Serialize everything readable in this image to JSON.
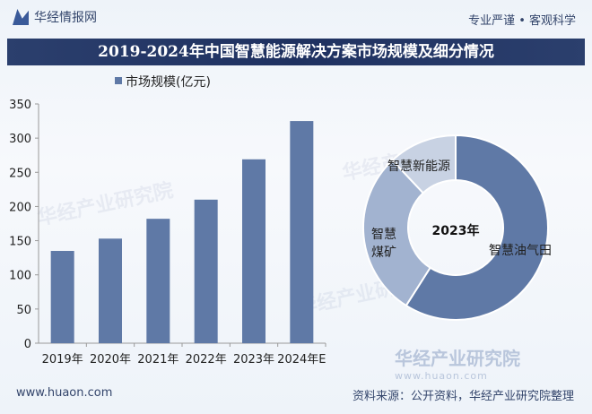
{
  "header": {
    "logo_text": "华经情报网",
    "slogan": "专业严谨 • 客观科学",
    "title": "2019-2024年中国智慧能源解决方案市场规模及细分情况"
  },
  "footer": {
    "website": "www.huaon.com",
    "source": "资料来源：公开资料，华经产业研究院整理"
  },
  "watermark": {
    "text": "华经产业研究院",
    "url": "www.huaon.com"
  },
  "chart_data": [
    {
      "type": "bar",
      "categories": [
        "2019年",
        "2020年",
        "2021年",
        "2022年",
        "2023年",
        "2024年E"
      ],
      "series": [
        {
          "name": "市场规模(亿元)",
          "values": [
            135,
            153,
            182,
            210,
            269,
            325
          ]
        }
      ],
      "ylim": [
        0,
        350
      ],
      "yticks": [
        0,
        50,
        100,
        150,
        200,
        250,
        300,
        350
      ],
      "grid": false,
      "legend": "top-left",
      "color": "#5f79a6"
    },
    {
      "type": "pie",
      "donut": true,
      "center_label": "2023年",
      "slices": [
        {
          "label": "智慧油气田",
          "value": 59,
          "color": "#5f79a6"
        },
        {
          "label": "智慧煤矿",
          "value": 29,
          "color": "#a2b3d0"
        },
        {
          "label": "智慧新能源",
          "value": 12,
          "color": "#c8d2e3"
        }
      ]
    }
  ]
}
